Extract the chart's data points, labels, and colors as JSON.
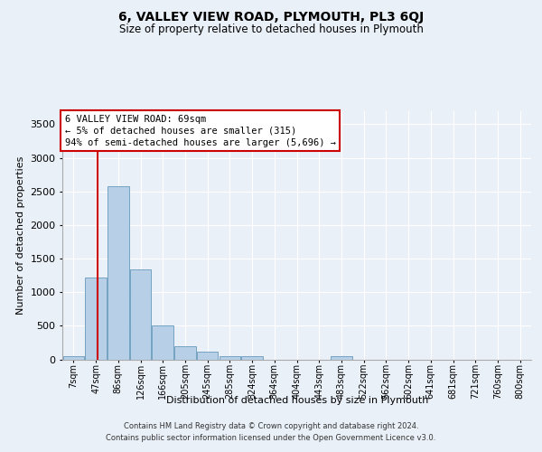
{
  "title": "6, VALLEY VIEW ROAD, PLYMOUTH, PL3 6QJ",
  "subtitle": "Size of property relative to detached houses in Plymouth",
  "xlabel": "Distribution of detached houses by size in Plymouth",
  "ylabel": "Number of detached properties",
  "bar_labels": [
    "7sqm",
    "47sqm",
    "86sqm",
    "126sqm",
    "166sqm",
    "205sqm",
    "245sqm",
    "285sqm",
    "324sqm",
    "364sqm",
    "404sqm",
    "443sqm",
    "483sqm",
    "522sqm",
    "562sqm",
    "602sqm",
    "641sqm",
    "681sqm",
    "721sqm",
    "760sqm",
    "800sqm"
  ],
  "bar_values": [
    50,
    1220,
    2570,
    1340,
    500,
    190,
    110,
    50,
    45,
    0,
    0,
    0,
    50,
    0,
    0,
    0,
    0,
    0,
    0,
    0,
    0
  ],
  "bar_color": "#b8cfe8",
  "bar_edge_color": "#6699bb",
  "ylim_max": 3700,
  "yticks": [
    0,
    500,
    1000,
    1500,
    2000,
    2500,
    3000,
    3500
  ],
  "property_line_color": "#cc0000",
  "annotation_line1": "6 VALLEY VIEW ROAD: 69sqm",
  "annotation_line2": "← 5% of detached houses are smaller (315)",
  "annotation_line3": "94% of semi-detached houses are larger (5,696) →",
  "footer_line1": "Contains HM Land Registry data © Crown copyright and database right 2024.",
  "footer_line2": "Contains public sector information licensed under the Open Government Licence v3.0.",
  "bg_color": "#eaf0f8",
  "grid_color": "#ffffff",
  "title_fontsize": 10,
  "subtitle_fontsize": 8.5,
  "ylabel_fontsize": 8,
  "xlabel_fontsize": 8,
  "tick_fontsize": 7,
  "ytick_fontsize": 8,
  "footer_fontsize": 6,
  "annot_fontsize": 7.5
}
